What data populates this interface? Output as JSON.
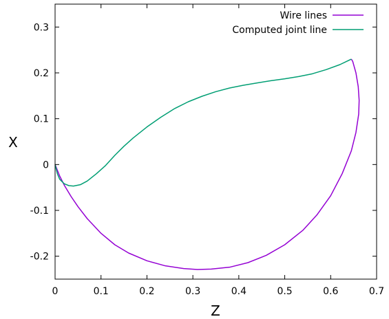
{
  "chart_data": {
    "type": "line",
    "title": "",
    "xlabel": "Z",
    "ylabel": "X",
    "xlim": [
      0,
      0.7
    ],
    "ylim": [
      -0.25,
      0.35
    ],
    "xticks": [
      0,
      0.1,
      0.2,
      0.3,
      0.4,
      0.5,
      0.6,
      0.7
    ],
    "xtick_labels": [
      "0",
      "0.1",
      "0.2",
      "0.3",
      "0.4",
      "0.5",
      "0.6",
      "0.7"
    ],
    "yticks": [
      -0.2,
      -0.1,
      0,
      0.1,
      0.2,
      0.3
    ],
    "ytick_labels": [
      "-0.2",
      "-0.1",
      "0",
      "0.1",
      "0.2",
      "0.3"
    ],
    "grid": false,
    "legend_position": "top-right",
    "series": [
      {
        "name": "Wire lines",
        "color": "#9400d3",
        "points": [
          [
            0.0,
            0.0
          ],
          [
            0.01,
            -0.025
          ],
          [
            0.02,
            -0.045
          ],
          [
            0.035,
            -0.07
          ],
          [
            0.05,
            -0.092
          ],
          [
            0.07,
            -0.118
          ],
          [
            0.1,
            -0.15
          ],
          [
            0.13,
            -0.175
          ],
          [
            0.16,
            -0.193
          ],
          [
            0.2,
            -0.21
          ],
          [
            0.24,
            -0.221
          ],
          [
            0.28,
            -0.227
          ],
          [
            0.31,
            -0.229
          ],
          [
            0.34,
            -0.228
          ],
          [
            0.38,
            -0.224
          ],
          [
            0.42,
            -0.214
          ],
          [
            0.46,
            -0.198
          ],
          [
            0.5,
            -0.175
          ],
          [
            0.54,
            -0.143
          ],
          [
            0.57,
            -0.11
          ],
          [
            0.6,
            -0.068
          ],
          [
            0.625,
            -0.02
          ],
          [
            0.645,
            0.03
          ],
          [
            0.655,
            0.07
          ],
          [
            0.661,
            0.11
          ],
          [
            0.662,
            0.14
          ],
          [
            0.66,
            0.17
          ],
          [
            0.655,
            0.2
          ],
          [
            0.648,
            0.225
          ],
          [
            0.645,
            0.23
          ]
        ]
      },
      {
        "name": "Computed joint line",
        "color": "#009e73",
        "points": [
          [
            0.0,
            0.0
          ],
          [
            0.005,
            -0.02
          ],
          [
            0.01,
            -0.032
          ],
          [
            0.02,
            -0.042
          ],
          [
            0.03,
            -0.046
          ],
          [
            0.04,
            -0.047
          ],
          [
            0.055,
            -0.044
          ],
          [
            0.07,
            -0.036
          ],
          [
            0.09,
            -0.02
          ],
          [
            0.11,
            -0.002
          ],
          [
            0.13,
            0.02
          ],
          [
            0.15,
            0.04
          ],
          [
            0.17,
            0.058
          ],
          [
            0.2,
            0.082
          ],
          [
            0.23,
            0.103
          ],
          [
            0.26,
            0.122
          ],
          [
            0.29,
            0.137
          ],
          [
            0.32,
            0.149
          ],
          [
            0.35,
            0.159
          ],
          [
            0.38,
            0.167
          ],
          [
            0.41,
            0.173
          ],
          [
            0.44,
            0.178
          ],
          [
            0.47,
            0.183
          ],
          [
            0.5,
            0.187
          ],
          [
            0.53,
            0.192
          ],
          [
            0.56,
            0.198
          ],
          [
            0.59,
            0.207
          ],
          [
            0.62,
            0.218
          ],
          [
            0.645,
            0.23
          ]
        ]
      }
    ]
  }
}
